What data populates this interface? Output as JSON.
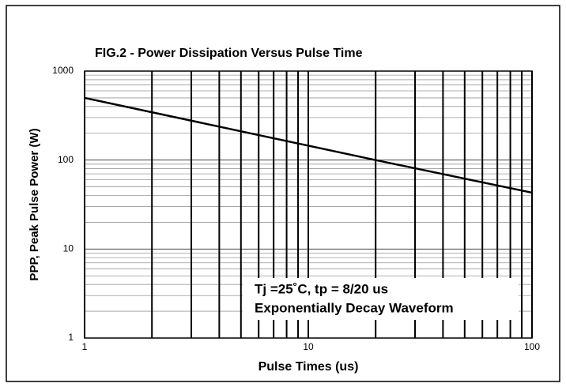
{
  "chart_data": {
    "type": "line",
    "title": "FIG.2 - Power Dissipation Versus Pulse Time",
    "xlabel": "Pulse Times (us)",
    "ylabel": "PPP, Peak Pulse Power (W)",
    "annotations": [
      "Tj =25˚C, tp = 8/20 us",
      "Exponentially Decay Waveform"
    ],
    "x": [
      1,
      20,
      100
    ],
    "series": [
      {
        "name": "Peak Pulse Power",
        "color": "#000000",
        "values": [
          500,
          100,
          43
        ]
      }
    ],
    "xscale": "log",
    "yscale": "log",
    "xlim": [
      1,
      100
    ],
    "ylim": [
      1,
      1000
    ],
    "xticks": [
      1,
      10,
      100
    ],
    "yticks": [
      1,
      10,
      100,
      1000
    ],
    "x_minor_ticks": [
      2,
      3,
      4,
      5,
      6,
      7,
      8,
      9,
      20,
      30,
      40,
      50,
      60,
      70,
      80,
      90
    ],
    "y_minor_ticks": [
      2,
      3,
      4,
      5,
      6,
      7,
      8,
      9,
      20,
      30,
      40,
      50,
      60,
      70,
      80,
      90,
      200,
      300,
      400,
      500,
      600,
      700,
      800,
      900
    ],
    "grid": true
  }
}
